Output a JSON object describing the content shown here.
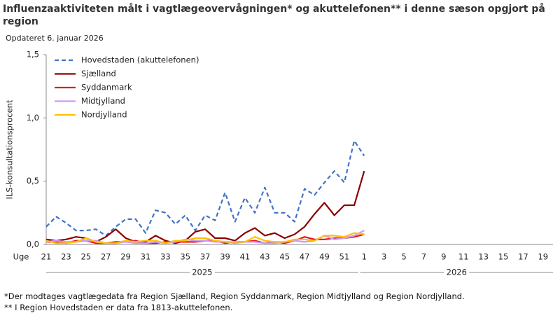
{
  "chart_data": {
    "type": "line",
    "title": "Influenzaaktiviteten målt i vagtlægeovervågningen* og akuttelefonen** i denne sæson opgjort på region",
    "subtitle": "Opdateret 6. januar 2026",
    "xlabel": "Uge",
    "ylabel": "ILS-konsultationsprocent",
    "categories": [
      21,
      null,
      23,
      null,
      25,
      null,
      27,
      null,
      29,
      null,
      31,
      null,
      33,
      null,
      35,
      null,
      37,
      null,
      39,
      null,
      41,
      null,
      43,
      null,
      45,
      null,
      47,
      null,
      49,
      null,
      51,
      null,
      1,
      null,
      3,
      null,
      5,
      null,
      7,
      null,
      9,
      null,
      11,
      null,
      13,
      null,
      15,
      null,
      17,
      null,
      19,
      null
    ],
    "x_groups": [
      "2025",
      "2026"
    ],
    "ylim": [
      0,
      1.5
    ],
    "yticks": [
      {
        "value": 0,
        "label": "0,0"
      },
      {
        "value": 0.5,
        "label": "0,5"
      },
      {
        "value": 1,
        "label": "1,0"
      },
      {
        "value": 1.5,
        "label": "1,5"
      }
    ],
    "grid": false,
    "legend": "top-left",
    "series": [
      {
        "name": "Hovedstaden (akuttelefonen)",
        "color": "#4472c4",
        "style": "dashed",
        "values": [
          0.14,
          0.22,
          0.17,
          0.11,
          0.11,
          0.12,
          0.07,
          0.14,
          0.2,
          0.2,
          0.09,
          0.27,
          0.25,
          0.16,
          0.23,
          0.11,
          0.23,
          0.19,
          0.41,
          0.18,
          0.37,
          0.25,
          0.45,
          0.25,
          0.25,
          0.18,
          0.44,
          0.39,
          0.49,
          0.58,
          0.49,
          0.82,
          0.7,
          null,
          null,
          null,
          null,
          null,
          null,
          null,
          null,
          null,
          null,
          null,
          null,
          null,
          null,
          null,
          null,
          null,
          null,
          null
        ]
      },
      {
        "name": "Sjælland",
        "color": "#8b0000",
        "style": "solid",
        "values": [
          0.04,
          0.03,
          0.04,
          0.06,
          0.05,
          0.02,
          0.06,
          0.12,
          0.05,
          0.02,
          0.02,
          0.07,
          0.03,
          0.01,
          0.03,
          0.1,
          0.12,
          0.05,
          0.05,
          0.03,
          0.09,
          0.13,
          0.07,
          0.09,
          0.05,
          0.08,
          0.14,
          0.24,
          0.33,
          0.23,
          0.31,
          0.31,
          0.58,
          null,
          null,
          null,
          null,
          null,
          null,
          null,
          null,
          null,
          null,
          null,
          null,
          null,
          null,
          null,
          null,
          null,
          null,
          null
        ]
      },
      {
        "name": "Syddanmark",
        "color": "#e8141c",
        "style": "solid",
        "values": [
          0.02,
          0.02,
          0.01,
          0.03,
          0.03,
          0.01,
          0.01,
          0.02,
          0.02,
          0.03,
          0.01,
          0.01,
          0.02,
          0.02,
          0.02,
          0.02,
          0.03,
          0.03,
          0.01,
          0.02,
          0.02,
          0.03,
          0.01,
          0.02,
          0.01,
          0.03,
          0.06,
          0.04,
          0.04,
          0.05,
          0.05,
          0.06,
          0.08,
          null,
          null,
          null,
          null,
          null,
          null,
          null,
          null,
          null,
          null,
          null,
          null,
          null,
          null,
          null,
          null,
          null,
          null,
          null
        ]
      },
      {
        "name": "Midtjylland",
        "color": "#cc99ff",
        "style": "solid",
        "values": [
          0.02,
          0.03,
          0.02,
          0.02,
          0.03,
          0.03,
          0.01,
          0.01,
          0.02,
          0.01,
          0.01,
          0.02,
          0.01,
          0.02,
          0.04,
          0.03,
          0.03,
          0.02,
          0.02,
          0.01,
          0.02,
          0.02,
          0.01,
          0.01,
          0.02,
          0.03,
          0.02,
          0.03,
          0.07,
          0.04,
          0.05,
          0.07,
          0.11,
          null,
          null,
          null,
          null,
          null,
          null,
          null,
          null,
          null,
          null,
          null,
          null,
          null,
          null,
          null,
          null,
          null,
          null,
          null
        ]
      },
      {
        "name": "Nordjylland",
        "color": "#ffc000",
        "style": "solid",
        "values": [
          0.03,
          0.01,
          0.01,
          0.02,
          0.05,
          0.02,
          0.01,
          0.01,
          0.03,
          0.02,
          0.03,
          0.03,
          0.01,
          0.03,
          0.03,
          0.05,
          0.05,
          0.03,
          0.02,
          0.02,
          0.02,
          0.06,
          0.03,
          0.02,
          0.02,
          0.04,
          0.04,
          0.03,
          0.07,
          0.07,
          0.06,
          0.09,
          0.08,
          null,
          null,
          null,
          null,
          null,
          null,
          null,
          null,
          null,
          null,
          null,
          null,
          null,
          null,
          null,
          null,
          null,
          null,
          null
        ]
      }
    ],
    "footnotes": [
      "*Der modtages vagtlægedata fra Region Sjælland, Region Syddanmark, Region Midtjylland og Region Nordjylland.",
      "** I Region Hovedstaden er data fra 1813-akuttelefonen."
    ]
  }
}
